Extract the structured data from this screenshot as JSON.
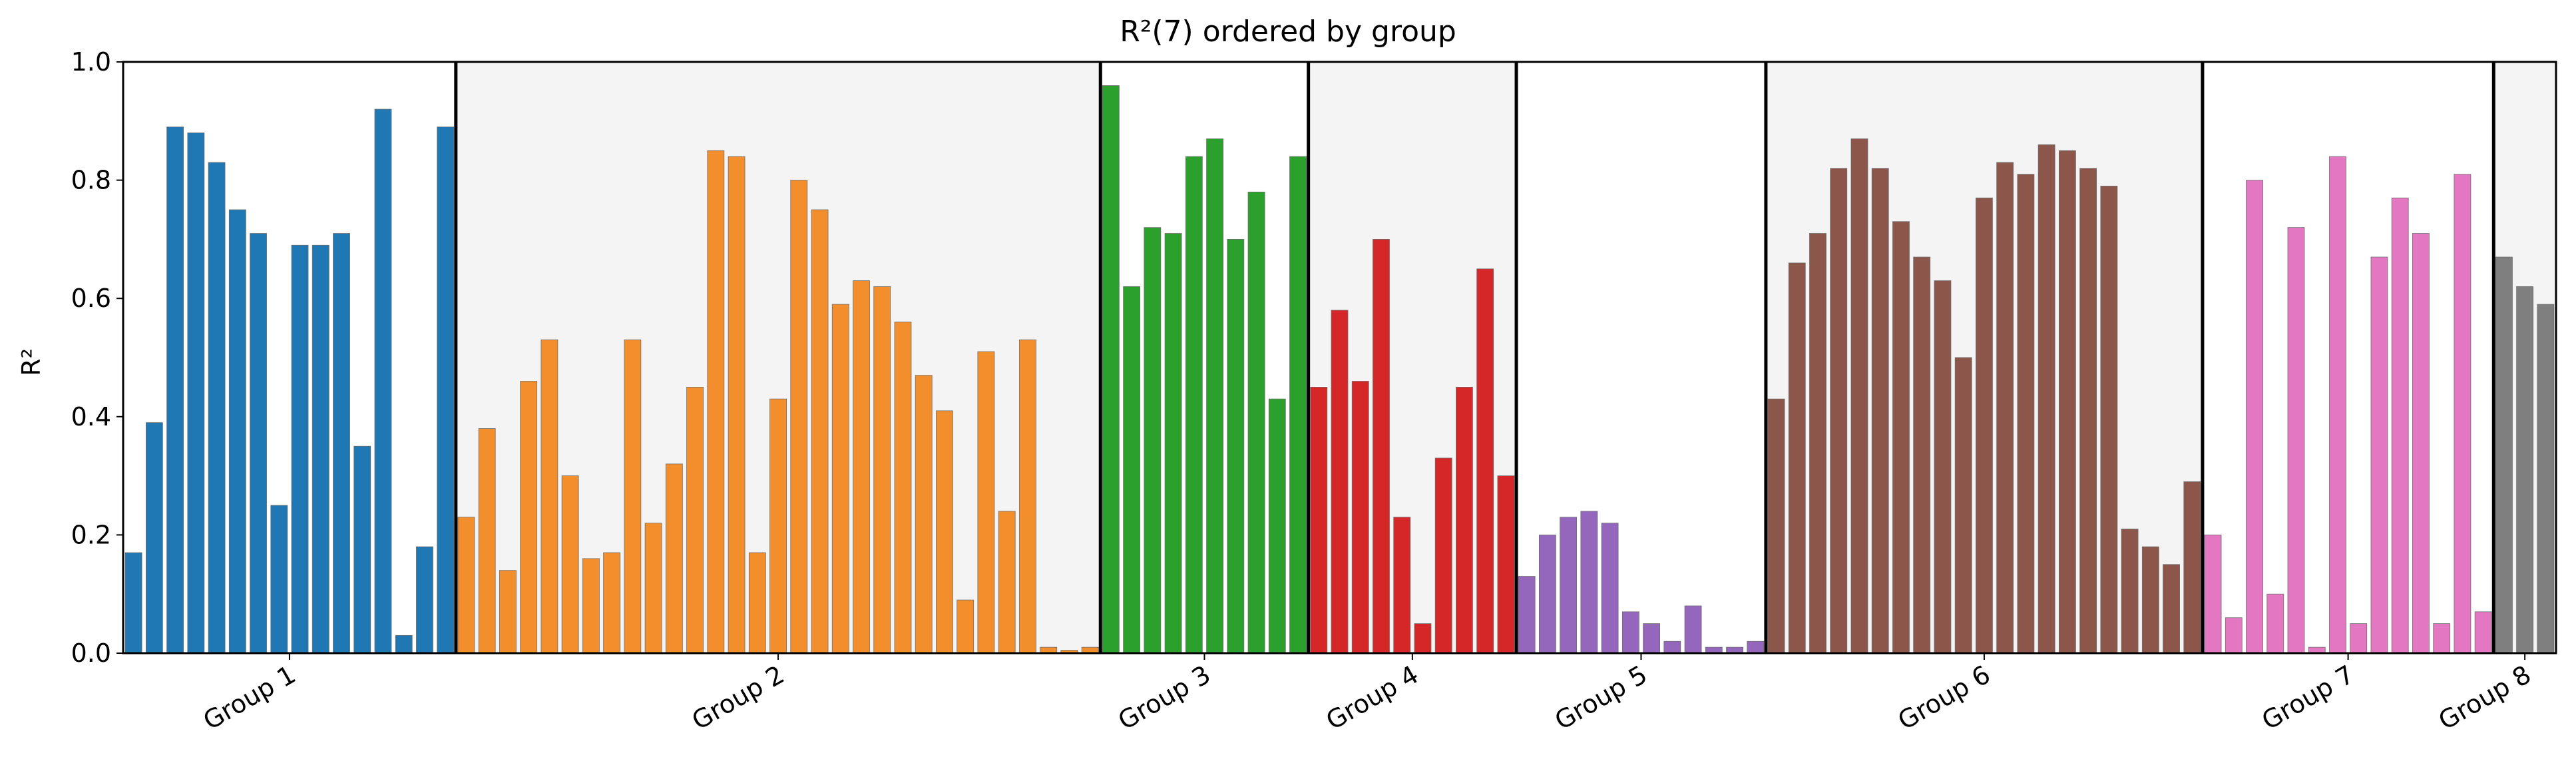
{
  "chart_data": {
    "type": "bar",
    "title": "R²(7) ordered by group",
    "ylabel": "R²",
    "xlabel": "",
    "ylim": [
      0,
      1.0
    ],
    "yticks": [
      "0.0",
      "0.2",
      "0.4",
      "0.6",
      "0.8",
      "1.0"
    ],
    "grid": false,
    "legend": "none",
    "group_shading": [
      "#ffffff",
      "#f4f4f4"
    ],
    "groups": [
      {
        "name": "Group 1",
        "color": "#1f77b4",
        "values": [
          0.17,
          0.39,
          0.89,
          0.88,
          0.83,
          0.75,
          0.71,
          0.25,
          0.69,
          0.69,
          0.71,
          0.35,
          0.92,
          0.03,
          0.18,
          0.89
        ]
      },
      {
        "name": "Group 2",
        "color": "#f28e2b",
        "values": [
          0.23,
          0.38,
          0.14,
          0.46,
          0.53,
          0.3,
          0.16,
          0.17,
          0.53,
          0.22,
          0.32,
          0.45,
          0.85,
          0.84,
          0.17,
          0.43,
          0.8,
          0.75,
          0.59,
          0.63,
          0.62,
          0.56,
          0.47,
          0.41,
          0.09,
          0.51,
          0.24,
          0.53,
          0.01,
          0.005,
          0.01
        ]
      },
      {
        "name": "Group 3",
        "color": "#2ca02c",
        "values": [
          0.96,
          0.62,
          0.72,
          0.71,
          0.84,
          0.87,
          0.7,
          0.78,
          0.43,
          0.84
        ]
      },
      {
        "name": "Group 4",
        "color": "#d62728",
        "values": [
          0.45,
          0.58,
          0.46,
          0.7,
          0.23,
          0.05,
          0.33,
          0.45,
          0.65,
          0.3
        ]
      },
      {
        "name": "Group 5",
        "color": "#9467bd",
        "values": [
          0.13,
          0.2,
          0.23,
          0.24,
          0.22,
          0.07,
          0.05,
          0.02,
          0.08,
          0.01,
          0.01,
          0.02
        ]
      },
      {
        "name": "Group 6",
        "color": "#8c564b",
        "values": [
          0.43,
          0.66,
          0.71,
          0.82,
          0.87,
          0.82,
          0.73,
          0.67,
          0.63,
          0.5,
          0.77,
          0.83,
          0.81,
          0.86,
          0.85,
          0.82,
          0.79,
          0.21,
          0.18,
          0.15,
          0.29
        ]
      },
      {
        "name": "Group 7",
        "color": "#e377c2",
        "values": [
          0.2,
          0.06,
          0.8,
          0.1,
          0.72,
          0.01,
          0.84,
          0.05,
          0.67,
          0.77,
          0.71,
          0.05,
          0.81,
          0.07
        ]
      },
      {
        "name": "Group 8",
        "color": "#7f7f7f",
        "values": [
          0.67,
          0.62,
          0.59
        ]
      }
    ]
  }
}
